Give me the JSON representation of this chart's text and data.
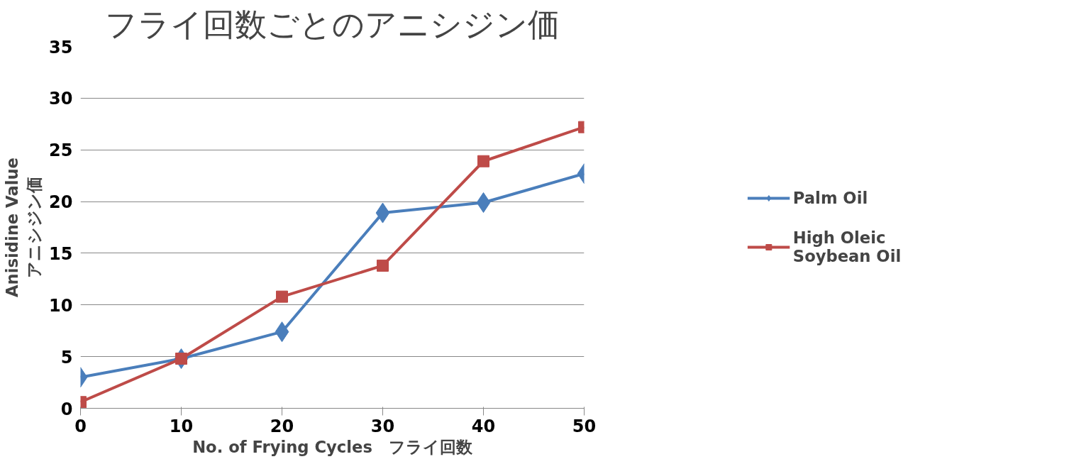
{
  "chart_data": {
    "type": "line",
    "title": "フライ回数ごとのアニシジン価",
    "xlabel": "No. of Frying Cycles　フライ回数",
    "ylabel": "Anisidine Value\nアニシジン価",
    "x": [
      0,
      10,
      20,
      30,
      40,
      50
    ],
    "series": [
      {
        "name": "Palm Oil",
        "color": "#4a7ebb",
        "marker": "diamond",
        "values": [
          3.0,
          4.8,
          7.4,
          18.9,
          19.9,
          22.7
        ]
      },
      {
        "name": "High Oleic\nSoybean Oil",
        "color": "#be4b48",
        "marker": "square",
        "values": [
          0.6,
          4.8,
          10.8,
          13.8,
          23.9,
          27.2
        ]
      }
    ],
    "xlim": [
      0,
      50
    ],
    "xticks": [
      0,
      10,
      20,
      30,
      40,
      50
    ],
    "ylim": [
      0,
      35
    ],
    "yticks": [
      0,
      5,
      10,
      15,
      20,
      25,
      30,
      35
    ],
    "grid": "y",
    "legend": "right",
    "line_style": "solid"
  }
}
